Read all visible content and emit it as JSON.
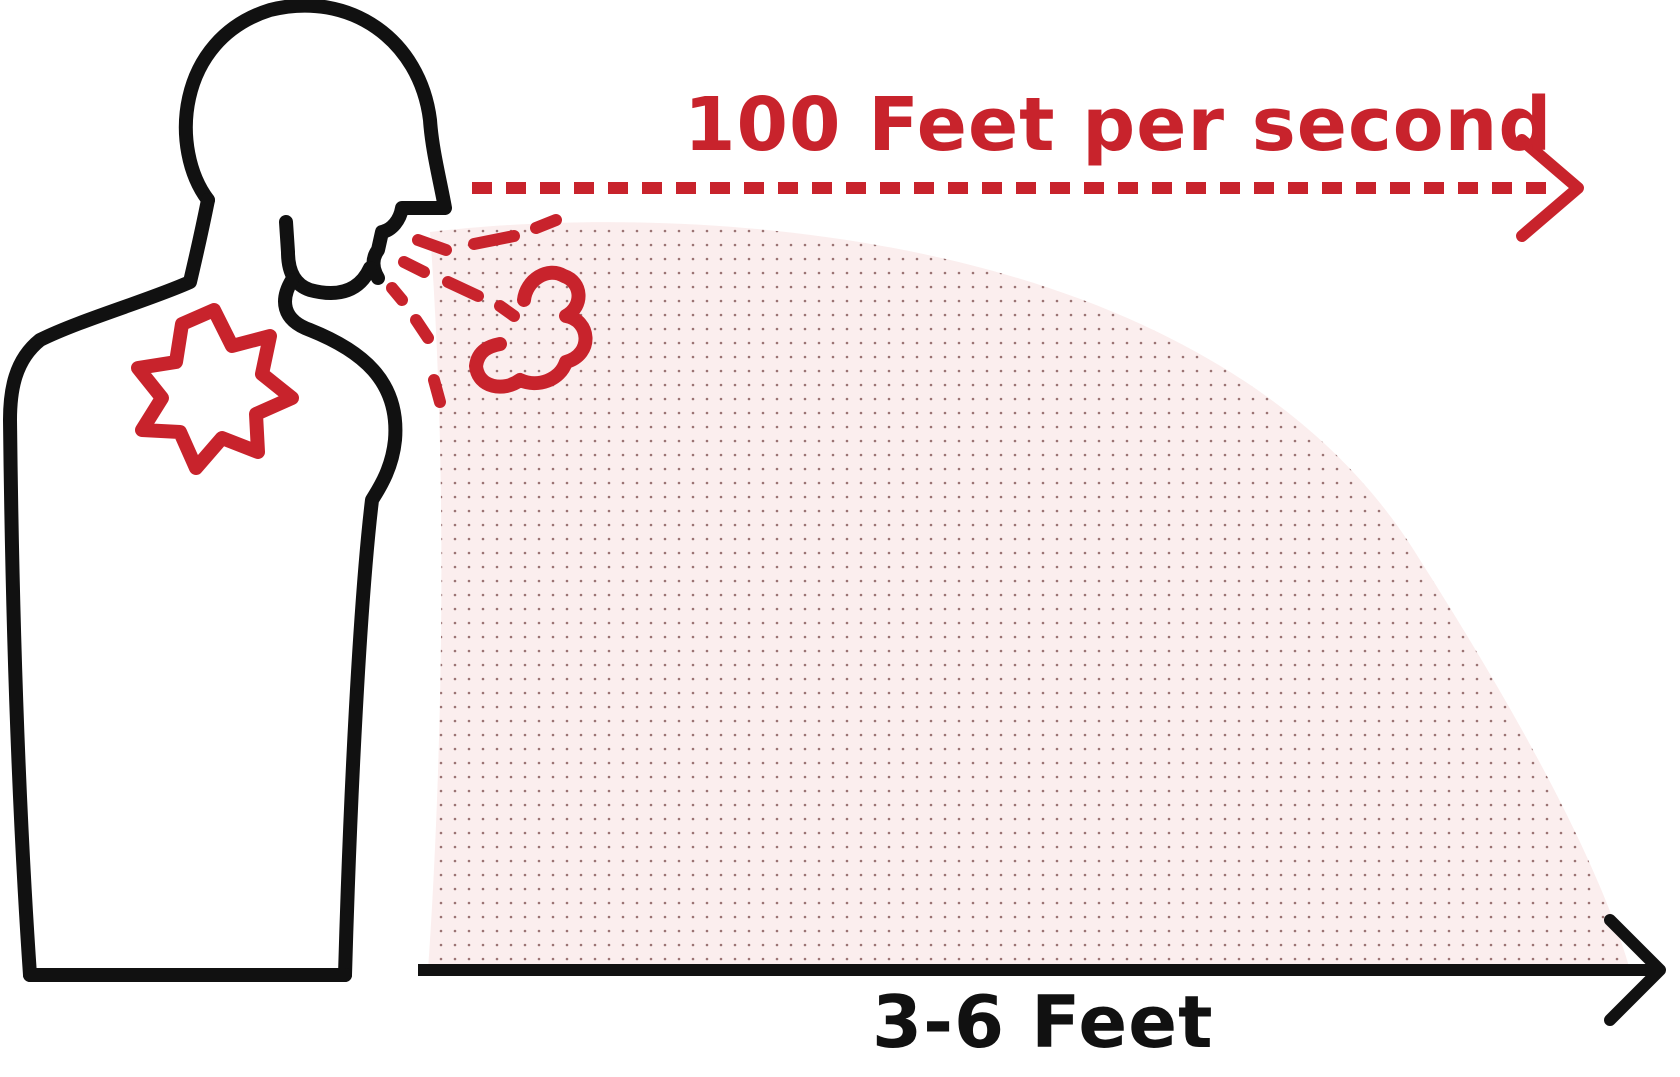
{
  "labels": {
    "speed": "100 Feet per second",
    "distance": "3-6 Feet"
  },
  "colors": {
    "accent_red": "#c8232c",
    "outline_black": "#111111",
    "spray_fill": "#fbeeee",
    "spray_dots": "#8a5a5a"
  },
  "icons": {
    "person": "person-coughing-outline-icon",
    "irritation": "chest-irritation-burst-icon",
    "cough": "cough-droplets-icon",
    "cloud": "cough-cloud-icon"
  }
}
